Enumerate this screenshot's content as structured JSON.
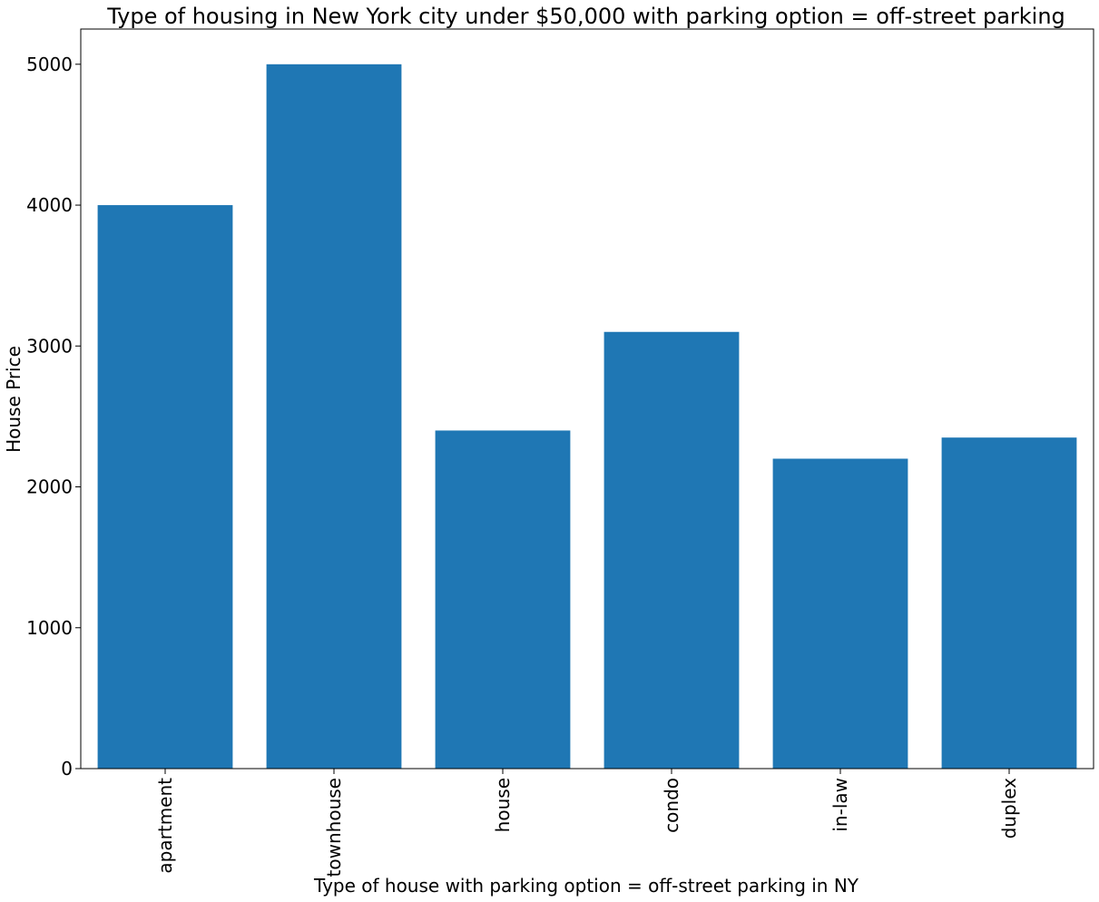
{
  "chart_data": {
    "type": "bar",
    "title": "Type of housing in New York city under $50,000 with parking option = off-street parking",
    "xlabel": "Type of house with parking option = off-street parking in NY",
    "ylabel": "House Price",
    "categories": [
      "apartment",
      "townhouse",
      "house",
      "condo",
      "in-law",
      "duplex"
    ],
    "values": [
      4000,
      5000,
      2400,
      3100,
      2200,
      2350
    ],
    "ylim": [
      0,
      5250
    ],
    "yticks": [
      0,
      1000,
      2000,
      3000,
      4000,
      5000
    ],
    "bar_color": "#1f77b4",
    "grid": false,
    "legend": "none",
    "xtick_rotation": "vertical"
  }
}
